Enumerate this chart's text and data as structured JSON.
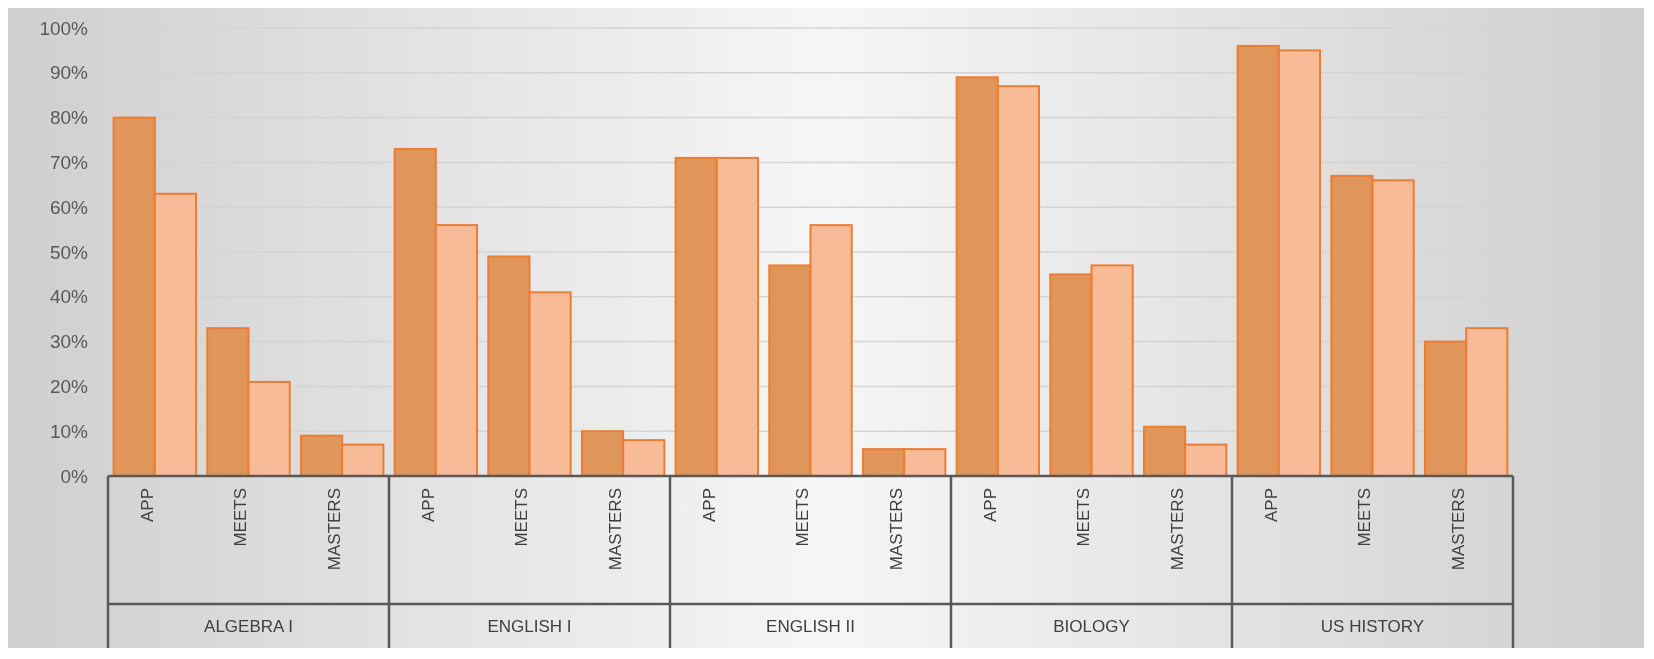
{
  "chart_data": {
    "type": "bar",
    "categories": [
      "APP",
      "MEETS",
      "MASTERS",
      "APP",
      "MEETS",
      "MASTERS",
      "APP",
      "MEETS",
      "MASTERS",
      "APP",
      "MEETS",
      "MASTERS",
      "APP",
      "MEETS",
      "MASTERS"
    ],
    "series": [
      {
        "color": "#e0955a",
        "values": [
          80,
          33,
          9,
          73,
          49,
          10,
          71,
          47,
          6,
          89,
          45,
          11,
          96,
          67,
          30
        ]
      },
      {
        "color": "#f8bb98",
        "values": [
          63,
          21,
          7,
          56,
          41,
          8,
          71,
          56,
          6,
          87,
          47,
          7,
          95,
          66,
          33
        ]
      }
    ],
    "ylim": [
      0,
      100
    ],
    "yticks": [
      {
        "value": 0,
        "label": "0%"
      },
      {
        "value": 10,
        "label": "10%"
      },
      {
        "value": 20,
        "label": "20%"
      },
      {
        "value": 30,
        "label": "30%"
      },
      {
        "value": 40,
        "label": "40%"
      },
      {
        "value": 50,
        "label": "50%"
      },
      {
        "value": 60,
        "label": "60%"
      },
      {
        "value": 70,
        "label": "70%"
      },
      {
        "value": 80,
        "label": "80%"
      },
      {
        "value": 90,
        "label": "90%"
      },
      {
        "value": 100,
        "label": "100%"
      }
    ],
    "grid": true,
    "annotations": [
      "ALGEBRA I",
      "ENGLISH I",
      "ENGLISH II",
      "BIOLOGY",
      "US HISTORY"
    ]
  }
}
